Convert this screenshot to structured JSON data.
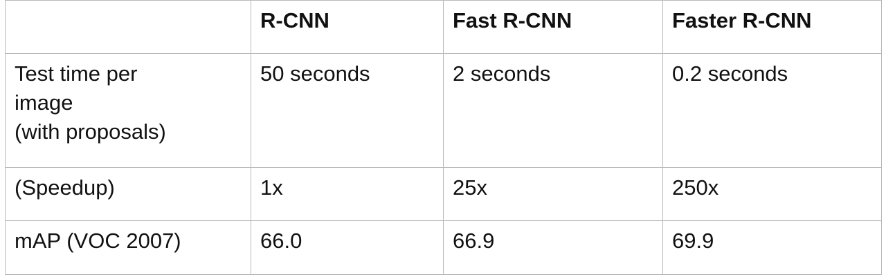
{
  "table": {
    "headers": [
      "",
      "R-CNN",
      "Fast R-CNN",
      "Faster R-CNN"
    ],
    "rows": [
      {
        "label": "Test time per\nimage\n(with proposals)",
        "cells": [
          "50 seconds",
          "2 seconds",
          "0.2 seconds"
        ],
        "bold": [
          false,
          false,
          true
        ]
      },
      {
        "label": "(Speedup)",
        "cells": [
          "1x",
          "25x",
          "250x"
        ],
        "bold": [
          false,
          false,
          true
        ]
      },
      {
        "label": "mAP (VOC 2007)",
        "cells": [
          "66.0",
          "66.9",
          "69.9"
        ],
        "bold": [
          false,
          true,
          true
        ]
      }
    ]
  }
}
